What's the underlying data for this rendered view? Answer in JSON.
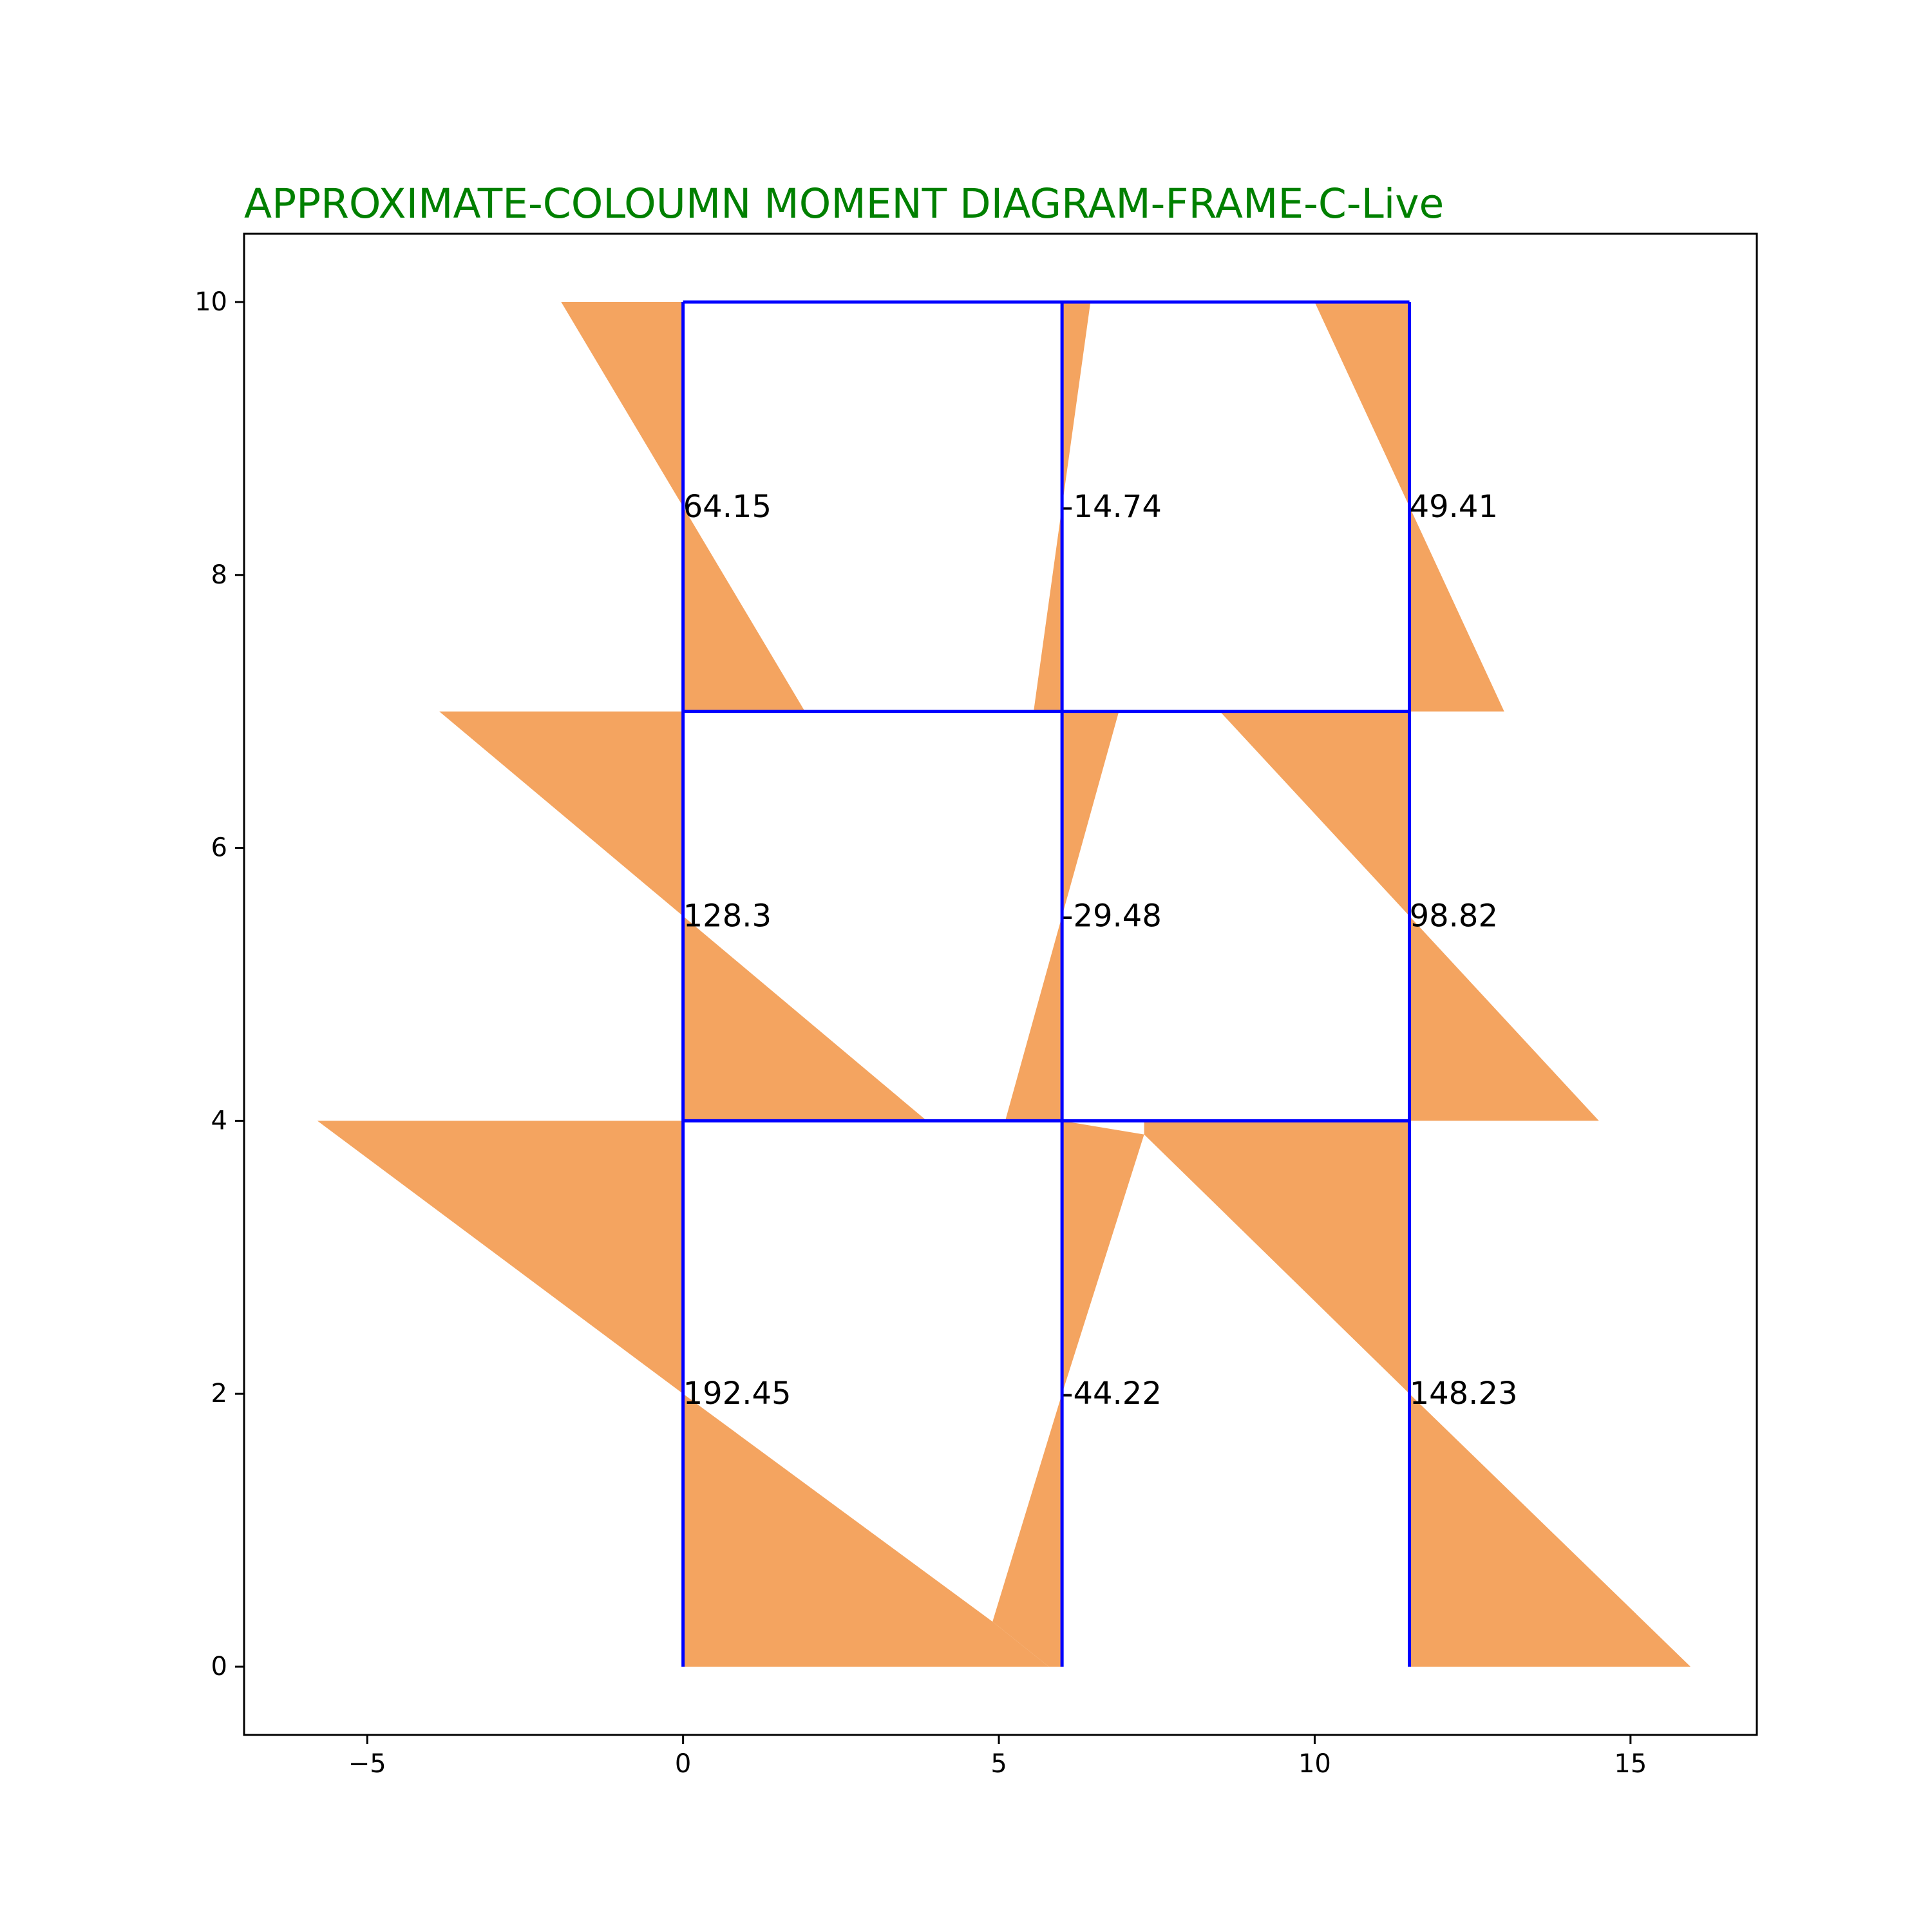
{
  "colors": {
    "title": "#008000",
    "frame": "#0000ff",
    "moment_fill": "#f4a460",
    "axes": "#000000",
    "background": "#ffffff"
  },
  "chart_data": {
    "type": "frame-moment-diagram",
    "title": "APPROXIMATE-COLOUMN MOMENT DIAGRAM-FRAME-C-Live",
    "xlabel": "",
    "ylabel": "",
    "xlim": [
      -6.95,
      17.0
    ],
    "ylim": [
      -0.5,
      10.5
    ],
    "x_ticks": [
      -5,
      0,
      5,
      10,
      15
    ],
    "x_tick_labels": [
      "−5",
      "0",
      "5",
      "10",
      "15"
    ],
    "y_ticks": [
      0,
      2,
      4,
      6,
      8,
      10
    ],
    "y_tick_labels": [
      "0",
      "2",
      "4",
      "6",
      "8",
      "10"
    ],
    "grid": false,
    "column_lines_x": [
      0,
      6,
      11.5
    ],
    "floor_levels_y": [
      0,
      4,
      7,
      10
    ],
    "frame_segments": [
      [
        [
          0,
          0
        ],
        [
          0,
          10
        ]
      ],
      [
        [
          6,
          0
        ],
        [
          6,
          10
        ]
      ],
      [
        [
          11.5,
          0
        ],
        [
          11.5,
          10
        ]
      ],
      [
        [
          0,
          4
        ],
        [
          11.5,
          4
        ]
      ],
      [
        [
          0,
          7
        ],
        [
          11.5,
          7
        ]
      ],
      [
        [
          0,
          10
        ],
        [
          11.5,
          10
        ]
      ]
    ],
    "moment_polygons": [
      [
        [
          0,
          10
        ],
        [
          -1.93,
          10
        ],
        [
          0,
          8.5
        ]
      ],
      [
        [
          0,
          8.5
        ],
        [
          1.93,
          7
        ],
        [
          0,
          7
        ]
      ],
      [
        [
          6,
          10
        ],
        [
          6.45,
          10
        ],
        [
          6,
          8.5
        ]
      ],
      [
        [
          6,
          8.5
        ],
        [
          5.55,
          7
        ],
        [
          6,
          7
        ]
      ],
      [
        [
          11.5,
          10
        ],
        [
          10.0,
          10
        ],
        [
          11.5,
          8.5
        ]
      ],
      [
        [
          11.5,
          8.5
        ],
        [
          13.0,
          7
        ],
        [
          11.5,
          7
        ]
      ],
      [
        [
          0,
          7
        ],
        [
          -3.86,
          7
        ],
        [
          0,
          5.5
        ]
      ],
      [
        [
          0,
          5.5
        ],
        [
          3.86,
          4
        ],
        [
          0,
          4
        ]
      ],
      [
        [
          6,
          7
        ],
        [
          6.9,
          7
        ],
        [
          6,
          5.5
        ]
      ],
      [
        [
          6,
          5.5
        ],
        [
          5.1,
          4
        ],
        [
          6,
          4
        ]
      ],
      [
        [
          11.5,
          7
        ],
        [
          8.5,
          7
        ],
        [
          11.5,
          5.5
        ]
      ],
      [
        [
          11.5,
          5.5
        ],
        [
          14.5,
          4
        ],
        [
          11.5,
          4
        ]
      ],
      [
        [
          0,
          4
        ],
        [
          -5.79,
          4
        ],
        [
          0,
          2
        ]
      ],
      [
        [
          0,
          2
        ],
        [
          4.9,
          0.33
        ],
        [
          5.79,
          0
        ],
        [
          0,
          0
        ]
      ],
      [
        [
          6,
          4
        ],
        [
          7.3,
          3.9
        ],
        [
          6,
          2
        ]
      ],
      [
        [
          6,
          2
        ],
        [
          4.9,
          0.33
        ],
        [
          5.79,
          0
        ],
        [
          6,
          0
        ]
      ],
      [
        [
          11.5,
          4
        ],
        [
          7.3,
          4
        ],
        [
          7.3,
          3.9
        ],
        [
          11.5,
          2
        ]
      ],
      [
        [
          11.5,
          2
        ],
        [
          15.95,
          0
        ],
        [
          11.5,
          0
        ]
      ]
    ],
    "moment_labels": [
      {
        "x": 0,
        "y": 8.5,
        "text": "64.15"
      },
      {
        "x": 6,
        "y": 8.5,
        "text": "-14.74"
      },
      {
        "x": 11.5,
        "y": 8.5,
        "text": "49.41"
      },
      {
        "x": 0,
        "y": 5.5,
        "text": "128.3"
      },
      {
        "x": 6,
        "y": 5.5,
        "text": "-29.48"
      },
      {
        "x": 11.5,
        "y": 5.5,
        "text": "98.82"
      },
      {
        "x": 0,
        "y": 2,
        "text": "192.45"
      },
      {
        "x": 6,
        "y": 2,
        "text": "-44.22"
      },
      {
        "x": 11.5,
        "y": 2,
        "text": "148.23"
      }
    ]
  }
}
